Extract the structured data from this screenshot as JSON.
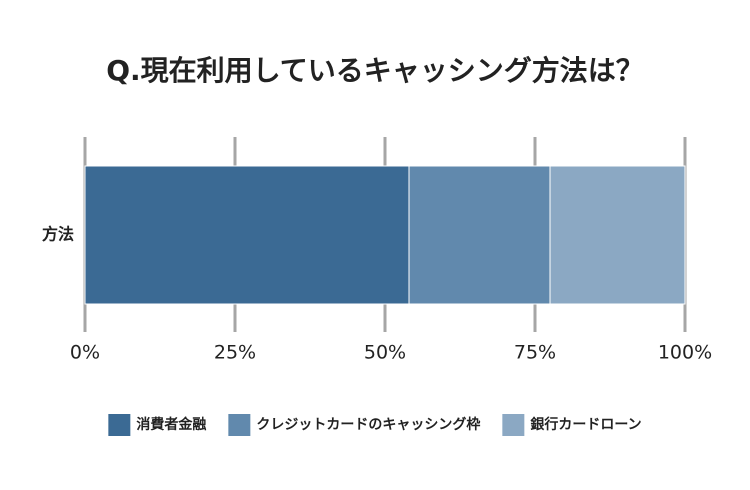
{
  "chart_data": {
    "type": "bar",
    "orientation": "horizontal",
    "stacked": true,
    "title": "Q.現在利用しているキャッシング方法は？",
    "categories": [
      "方法"
    ],
    "series": [
      {
        "name": "消費者金融",
        "color": "#3b6a94",
        "values": [
          54
        ]
      },
      {
        "name": "クレジットカードのキャッシング枠",
        "color": "#6189ad",
        "values": [
          23.5
        ]
      },
      {
        "name": "銀行カードローン",
        "color": "#8ba8c3",
        "values": [
          22.5
        ]
      }
    ],
    "xlim": [
      0,
      100
    ],
    "xticks": [
      {
        "value": 0,
        "label": "0%"
      },
      {
        "value": 25,
        "label": "25%"
      },
      {
        "value": 50,
        "label": "50%"
      },
      {
        "value": 75,
        "label": "75%"
      },
      {
        "value": 100,
        "label": "100%"
      }
    ],
    "grid": true,
    "legend": "bottom"
  }
}
